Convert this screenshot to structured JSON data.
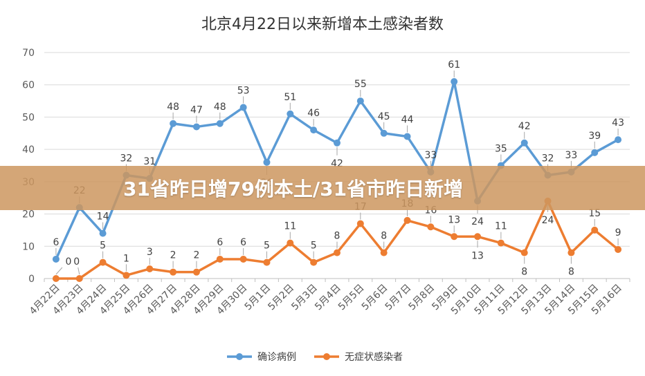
{
  "banner": {
    "text": "31省昨日增79例本土/31省市昨日新增"
  },
  "chart_data": {
    "type": "line",
    "title": "北京4月22日以来新增本土感染者数",
    "categories": [
      "4月22日",
      "4月23日",
      "4月24日",
      "4月25日",
      "4月26日",
      "4月27日",
      "4月28日",
      "4月29日",
      "4月30日",
      "5月1日",
      "5月2日",
      "5月3日",
      "5月4日",
      "5月5日",
      "5月6日",
      "5月7日",
      "5月8日",
      "5月9日",
      "5月10日",
      "5月11日",
      "5月12日",
      "5月13日",
      "5月14日",
      "5月15日",
      "5月16日"
    ],
    "ylim": [
      0,
      70
    ],
    "yticks": [
      0,
      10,
      20,
      30,
      40,
      50,
      60,
      70
    ],
    "grid": true,
    "legend_position": "bottom",
    "series": [
      {
        "name": "确诊病例",
        "color": "#5B9BD5",
        "values": [
          6,
          22,
          14,
          32,
          31,
          48,
          47,
          48,
          53,
          36,
          51,
          46,
          42,
          55,
          45,
          44,
          33,
          61,
          24,
          35,
          42,
          32,
          33,
          39,
          43
        ]
      },
      {
        "name": "无症状感染者",
        "color": "#ED7D31",
        "values": [
          0,
          0,
          5,
          1,
          3,
          2,
          2,
          6,
          6,
          5,
          11,
          5,
          8,
          17,
          8,
          18,
          16,
          13,
          13,
          11,
          8,
          24,
          8,
          15,
          9
        ]
      }
    ]
  }
}
